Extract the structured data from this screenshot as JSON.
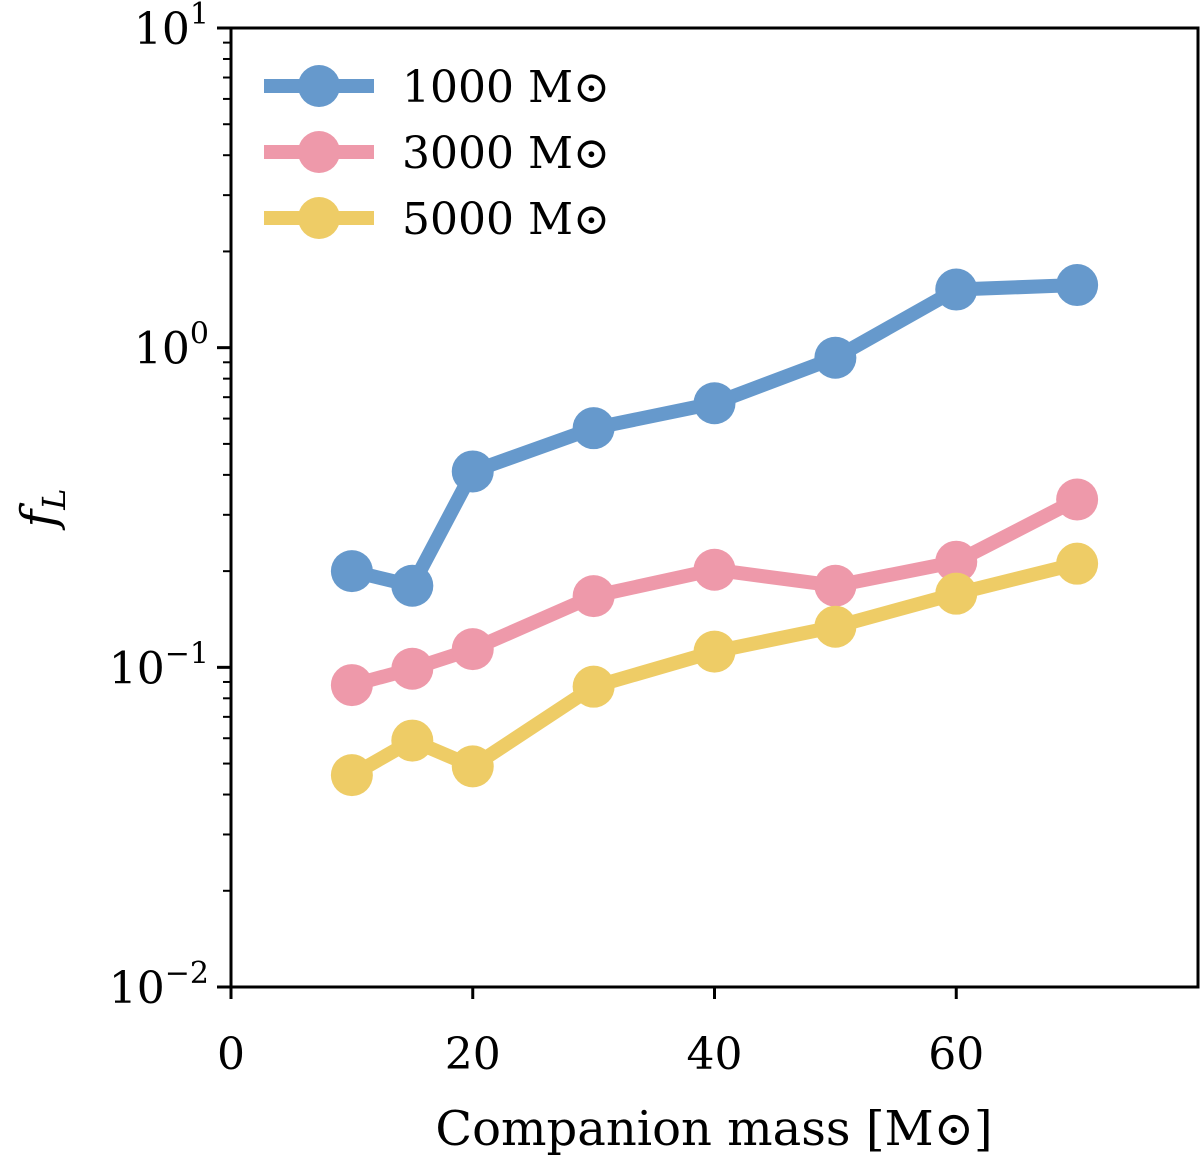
{
  "chart_data": {
    "type": "line",
    "title": "",
    "xlabel": "Companion mass [M⊙]",
    "ylabel": "f_L",
    "xlim": [
      0,
      80
    ],
    "ylim": [
      0.01,
      10
    ],
    "yscale": "log",
    "grid": false,
    "legend_position": "top-left",
    "x_ticks": [
      0,
      20,
      40,
      60
    ],
    "x_tick_labels": [
      "0",
      "20",
      "40",
      "60"
    ],
    "y_ticks": [
      0.01,
      0.1,
      1,
      10
    ],
    "y_tick_labels": [
      {
        "base": "10",
        "exp": "−2"
      },
      {
        "base": "10",
        "exp": "−1"
      },
      {
        "base": "10",
        "exp": "0"
      },
      {
        "base": "10",
        "exp": "1"
      }
    ],
    "x": [
      10,
      15,
      20,
      30,
      40,
      50,
      60,
      70
    ],
    "series": [
      {
        "name": "1000 M⊙",
        "color": "#6699cc",
        "values": [
          0.2,
          0.18,
          0.41,
          0.56,
          0.67,
          0.93,
          1.52,
          1.57
        ]
      },
      {
        "name": "3000 M⊙",
        "color": "#ee99aa",
        "values": [
          0.088,
          0.099,
          0.114,
          0.167,
          0.202,
          0.18,
          0.214,
          0.335
        ]
      },
      {
        "name": "5000 M⊙",
        "color": "#eecc66",
        "values": [
          0.046,
          0.059,
          0.049,
          0.087,
          0.112,
          0.134,
          0.17,
          0.211
        ]
      }
    ]
  }
}
